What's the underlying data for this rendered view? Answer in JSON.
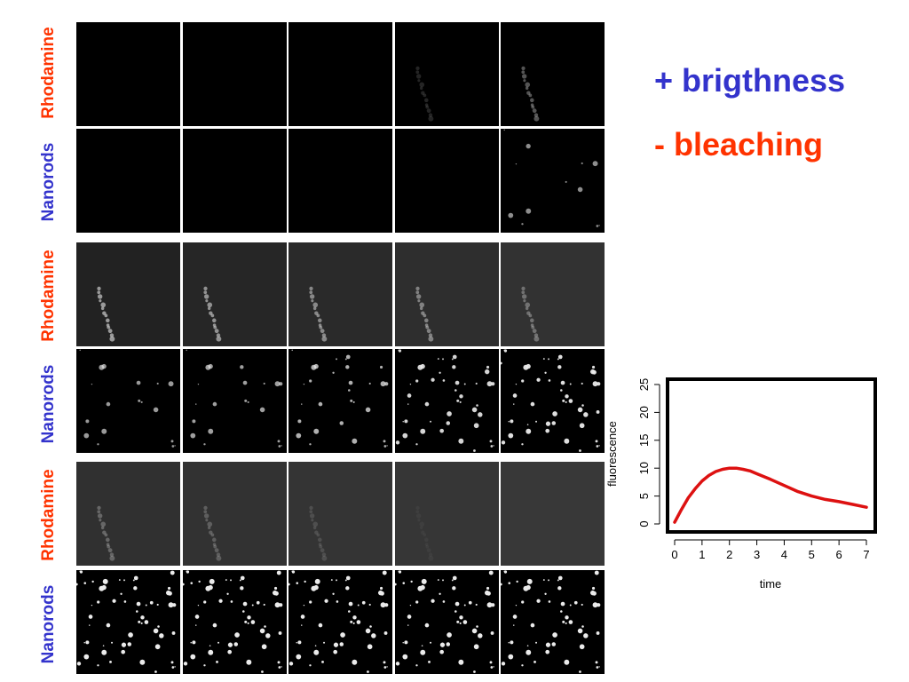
{
  "row_labels": [
    {
      "text": "Rhodamine",
      "color": "#ff3300"
    },
    {
      "text": "Nanorods",
      "color": "#3333cc"
    },
    {
      "text": "Rhodamine",
      "color": "#ff3300"
    },
    {
      "text": "Nanorods",
      "color": "#3333cc"
    },
    {
      "text": "Rhodamine",
      "color": "#ff3300"
    },
    {
      "text": "Nanorods",
      "color": "#3333cc"
    }
  ],
  "legend": {
    "plus_text": "+ brigthness",
    "minus_text": "- bleaching",
    "plus_color": "#3333cc",
    "minus_color": "#ff3300"
  },
  "tiles": {
    "rhodamine_group1_level": [
      0,
      0,
      0,
      0.15,
      0.35
    ],
    "nanorods_group1_level": [
      0,
      0,
      0,
      0,
      0.2
    ],
    "rhodamine_group2_level": [
      0.6,
      0.55,
      0.5,
      0.45,
      0.35
    ],
    "nanorods_group2_level": [
      0.3,
      0.35,
      0.5,
      0.8,
      0.9
    ],
    "rhodamine_group3_level": [
      0.3,
      0.25,
      0.15,
      0.05,
      0
    ],
    "nanorods_group3_level": [
      1,
      1,
      1,
      1,
      1
    ]
  },
  "chart_data": {
    "type": "line",
    "title": "",
    "xlabel": "time",
    "ylabel": "fluorescence",
    "xlim": [
      0,
      7
    ],
    "ylim": [
      0,
      25
    ],
    "xticks": [
      "0",
      "1",
      "2",
      "3",
      "4",
      "5",
      "6",
      "7"
    ],
    "yticks": [
      "0",
      "5",
      "10",
      "15",
      "20",
      "25"
    ],
    "grid": false,
    "series": [
      {
        "color": "#dd1111",
        "x": [
          0,
          0.25,
          0.5,
          0.75,
          1,
          1.25,
          1.5,
          1.75,
          2,
          2.25,
          2.5,
          2.75,
          3,
          3.5,
          4,
          4.5,
          5,
          5.5,
          6,
          6.5,
          7
        ],
        "y": [
          0.3,
          2.6,
          4.7,
          6.3,
          7.7,
          8.7,
          9.4,
          9.8,
          10.0,
          10.0,
          9.8,
          9.5,
          9.0,
          8.0,
          6.9,
          5.8,
          5.0,
          4.4,
          4.0,
          3.5,
          3.0
        ]
      }
    ]
  }
}
